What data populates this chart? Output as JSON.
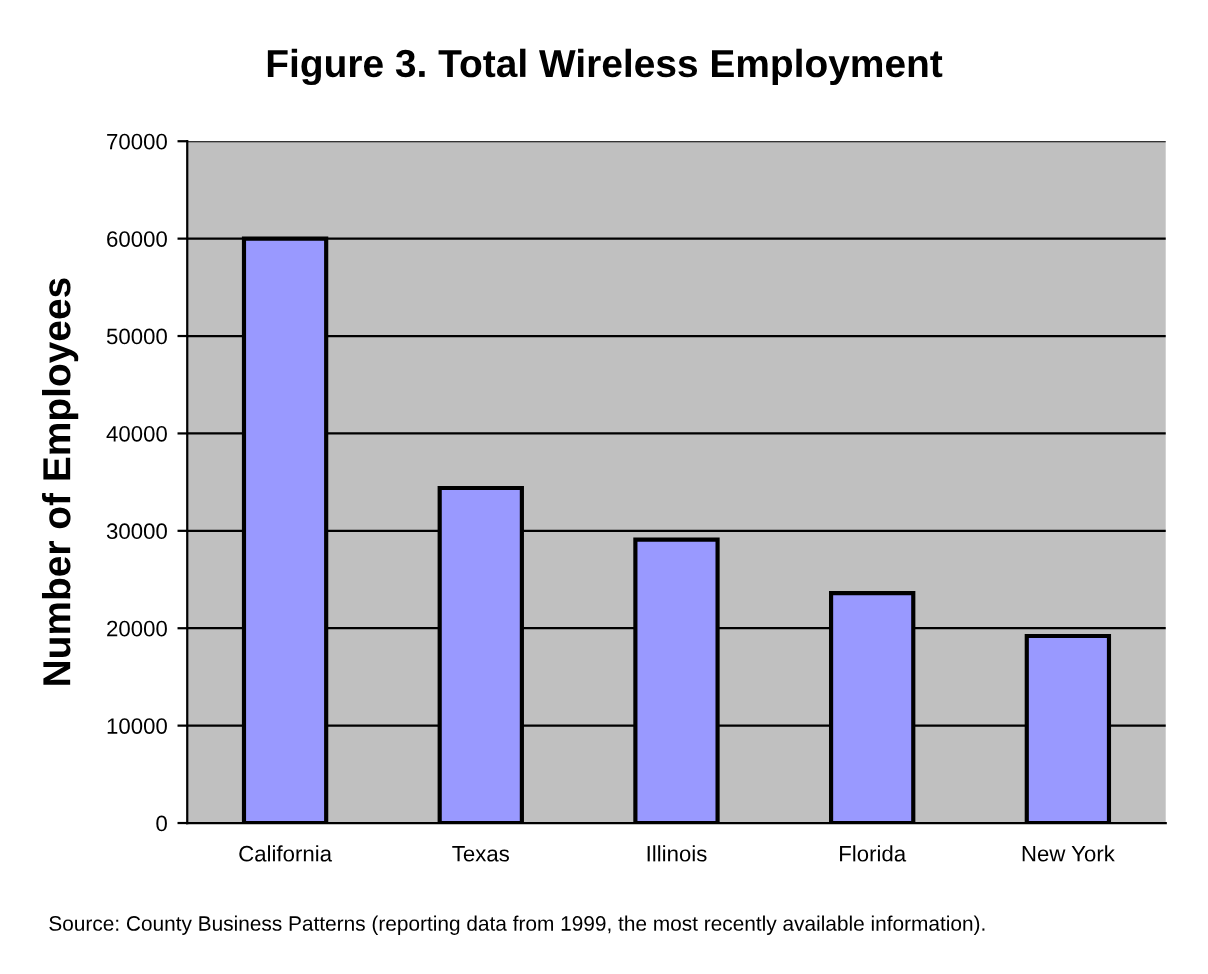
{
  "chart_data": {
    "type": "bar",
    "title": "Figure 3. Total Wireless Employment",
    "ylabel": "Number of Employees",
    "categories": [
      "California",
      "Texas",
      "Illinois",
      "Florida",
      "New York"
    ],
    "values": [
      60000,
      34400,
      29100,
      23600,
      19200
    ],
    "color": "#9999ff",
    "ylim": [
      0,
      70000
    ],
    "yticks": [
      0,
      10000,
      20000,
      30000,
      40000,
      50000,
      60000,
      70000
    ],
    "grid": "y",
    "annotations": [
      "Source: County Business Patterns (reporting data from 1999, the most recently available information)."
    ]
  }
}
